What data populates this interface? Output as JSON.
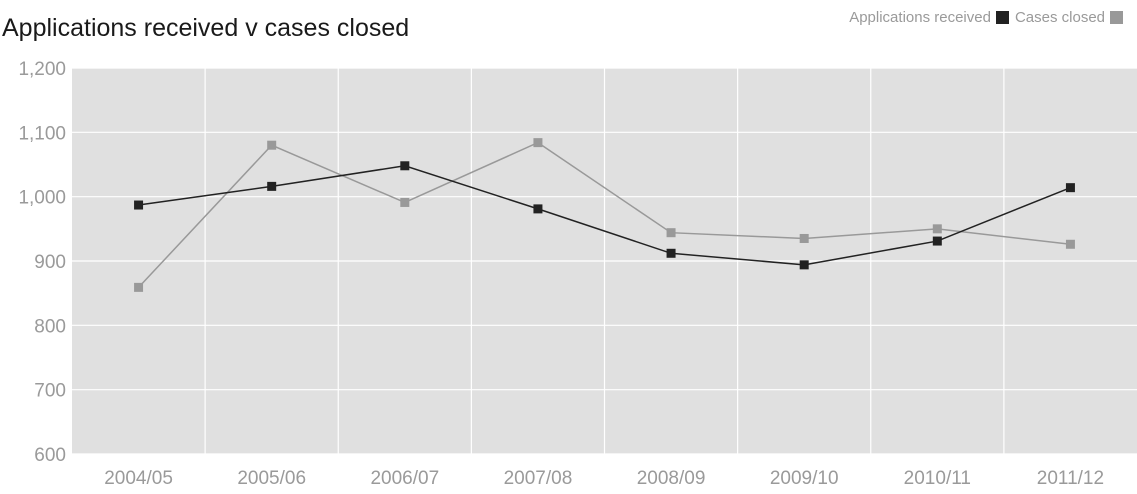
{
  "chart_data": {
    "type": "line",
    "title": "Applications received v cases closed",
    "categories": [
      "2004/05",
      "2005/06",
      "2006/07",
      "2007/08",
      "2008/09",
      "2009/10",
      "2010/11",
      "2011/12"
    ],
    "series": [
      {
        "name": "Applications received",
        "color": "#222222",
        "values": [
          987,
          1016,
          1048,
          981,
          912,
          894,
          931,
          1014
        ]
      },
      {
        "name": "Cases closed",
        "color": "#999999",
        "values": [
          859,
          1080,
          991,
          1084,
          944,
          935,
          950,
          926
        ]
      }
    ],
    "ylim": [
      600,
      1200
    ],
    "yticks": [
      "600",
      "700",
      "800",
      "900",
      "1,000",
      "1,100",
      "1,200"
    ],
    "grid": true,
    "legend_position": "top-right",
    "background": "#e0e0e0"
  }
}
